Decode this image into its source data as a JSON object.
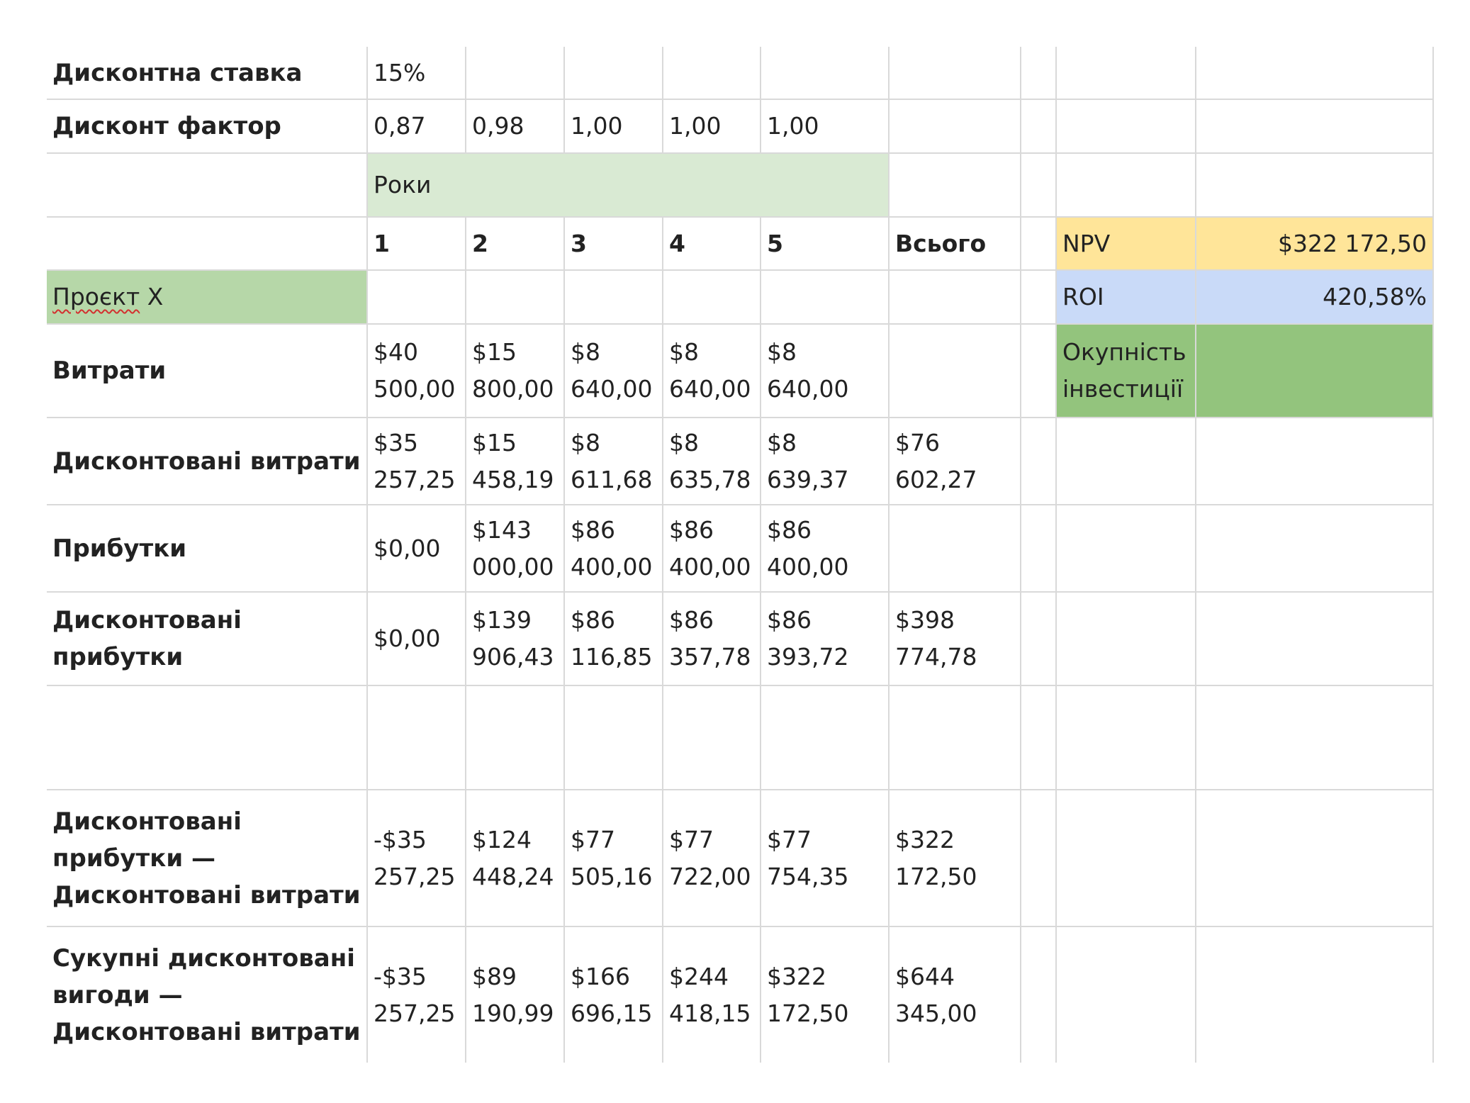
{
  "sheet": {
    "rows": [
      {
        "label": "Дисконтна ставка",
        "cells": [
          "15%",
          "",
          "",
          "",
          "",
          "",
          "",
          "",
          ""
        ]
      },
      {
        "label": "Дисконт фактор",
        "cells": [
          "0,87",
          "0,98",
          "1,00",
          "1,00",
          "1,00",
          "",
          "",
          "",
          ""
        ]
      },
      {
        "label": "",
        "cells": [
          "Роки",
          "",
          "",
          ""
        ]
      },
      {
        "label": "",
        "cells": [
          "1",
          "2",
          "3",
          "4",
          "5",
          "Всього",
          "",
          "NPV",
          "$322 172,50"
        ]
      },
      {
        "label_parts": [
          "Проєкт",
          " X"
        ],
        "cells": [
          "",
          "",
          "",
          "",
          "",
          "",
          "",
          "ROI",
          "420,58%"
        ]
      },
      {
        "label": "Витрати",
        "cells": [
          "$40 500,00",
          "$15 800,00",
          "$8 640,00",
          "$8 640,00",
          "$8 640,00",
          "",
          "",
          "Окупність інвестиції",
          ""
        ]
      },
      {
        "label": "Дисконтовані витрати",
        "cells": [
          "$35 257,25",
          "$15 458,19",
          "$8 611,68",
          "$8 635,78",
          "$8 639,37",
          "$76 602,27",
          "",
          "",
          ""
        ]
      },
      {
        "label": "Прибутки",
        "cells": [
          "$0,00",
          "$143 000,00",
          "$86 400,00",
          "$86 400,00",
          "$86 400,00",
          "",
          "",
          "",
          ""
        ]
      },
      {
        "label": "Дисконтовані прибутки",
        "cells": [
          "$0,00",
          "$139 906,43",
          "$86 116,85",
          "$86 357,78",
          "$86 393,72",
          "$398 774,78",
          "",
          "",
          ""
        ]
      },
      {
        "label": "",
        "cells": [
          "",
          "",
          "",
          "",
          "",
          "",
          "",
          "",
          ""
        ]
      },
      {
        "label": "Дисконтовані прибутки — Дисконтовані витрати",
        "cells": [
          "-$35 257,25",
          "$124 448,24",
          "$77 505,16",
          "$77 722,00",
          "$77 754,35",
          "$322 172,50",
          "",
          "",
          ""
        ]
      },
      {
        "label": "Сукупні дисконтовані вигоди — Дисконтовані витрати",
        "cells": [
          "-$35 257,25",
          "$89 190,99",
          "$166 696,15",
          "$244 418,15",
          "$322 172,50",
          "$644 345,00",
          "",
          "",
          ""
        ]
      }
    ]
  },
  "colors": {
    "years_header": "#d9ead3",
    "project_label": "#b6d7a8",
    "npv": "#ffe599",
    "roi": "#c9daf8",
    "payback": "#93c47d",
    "gridline": "#d9d9d9"
  }
}
